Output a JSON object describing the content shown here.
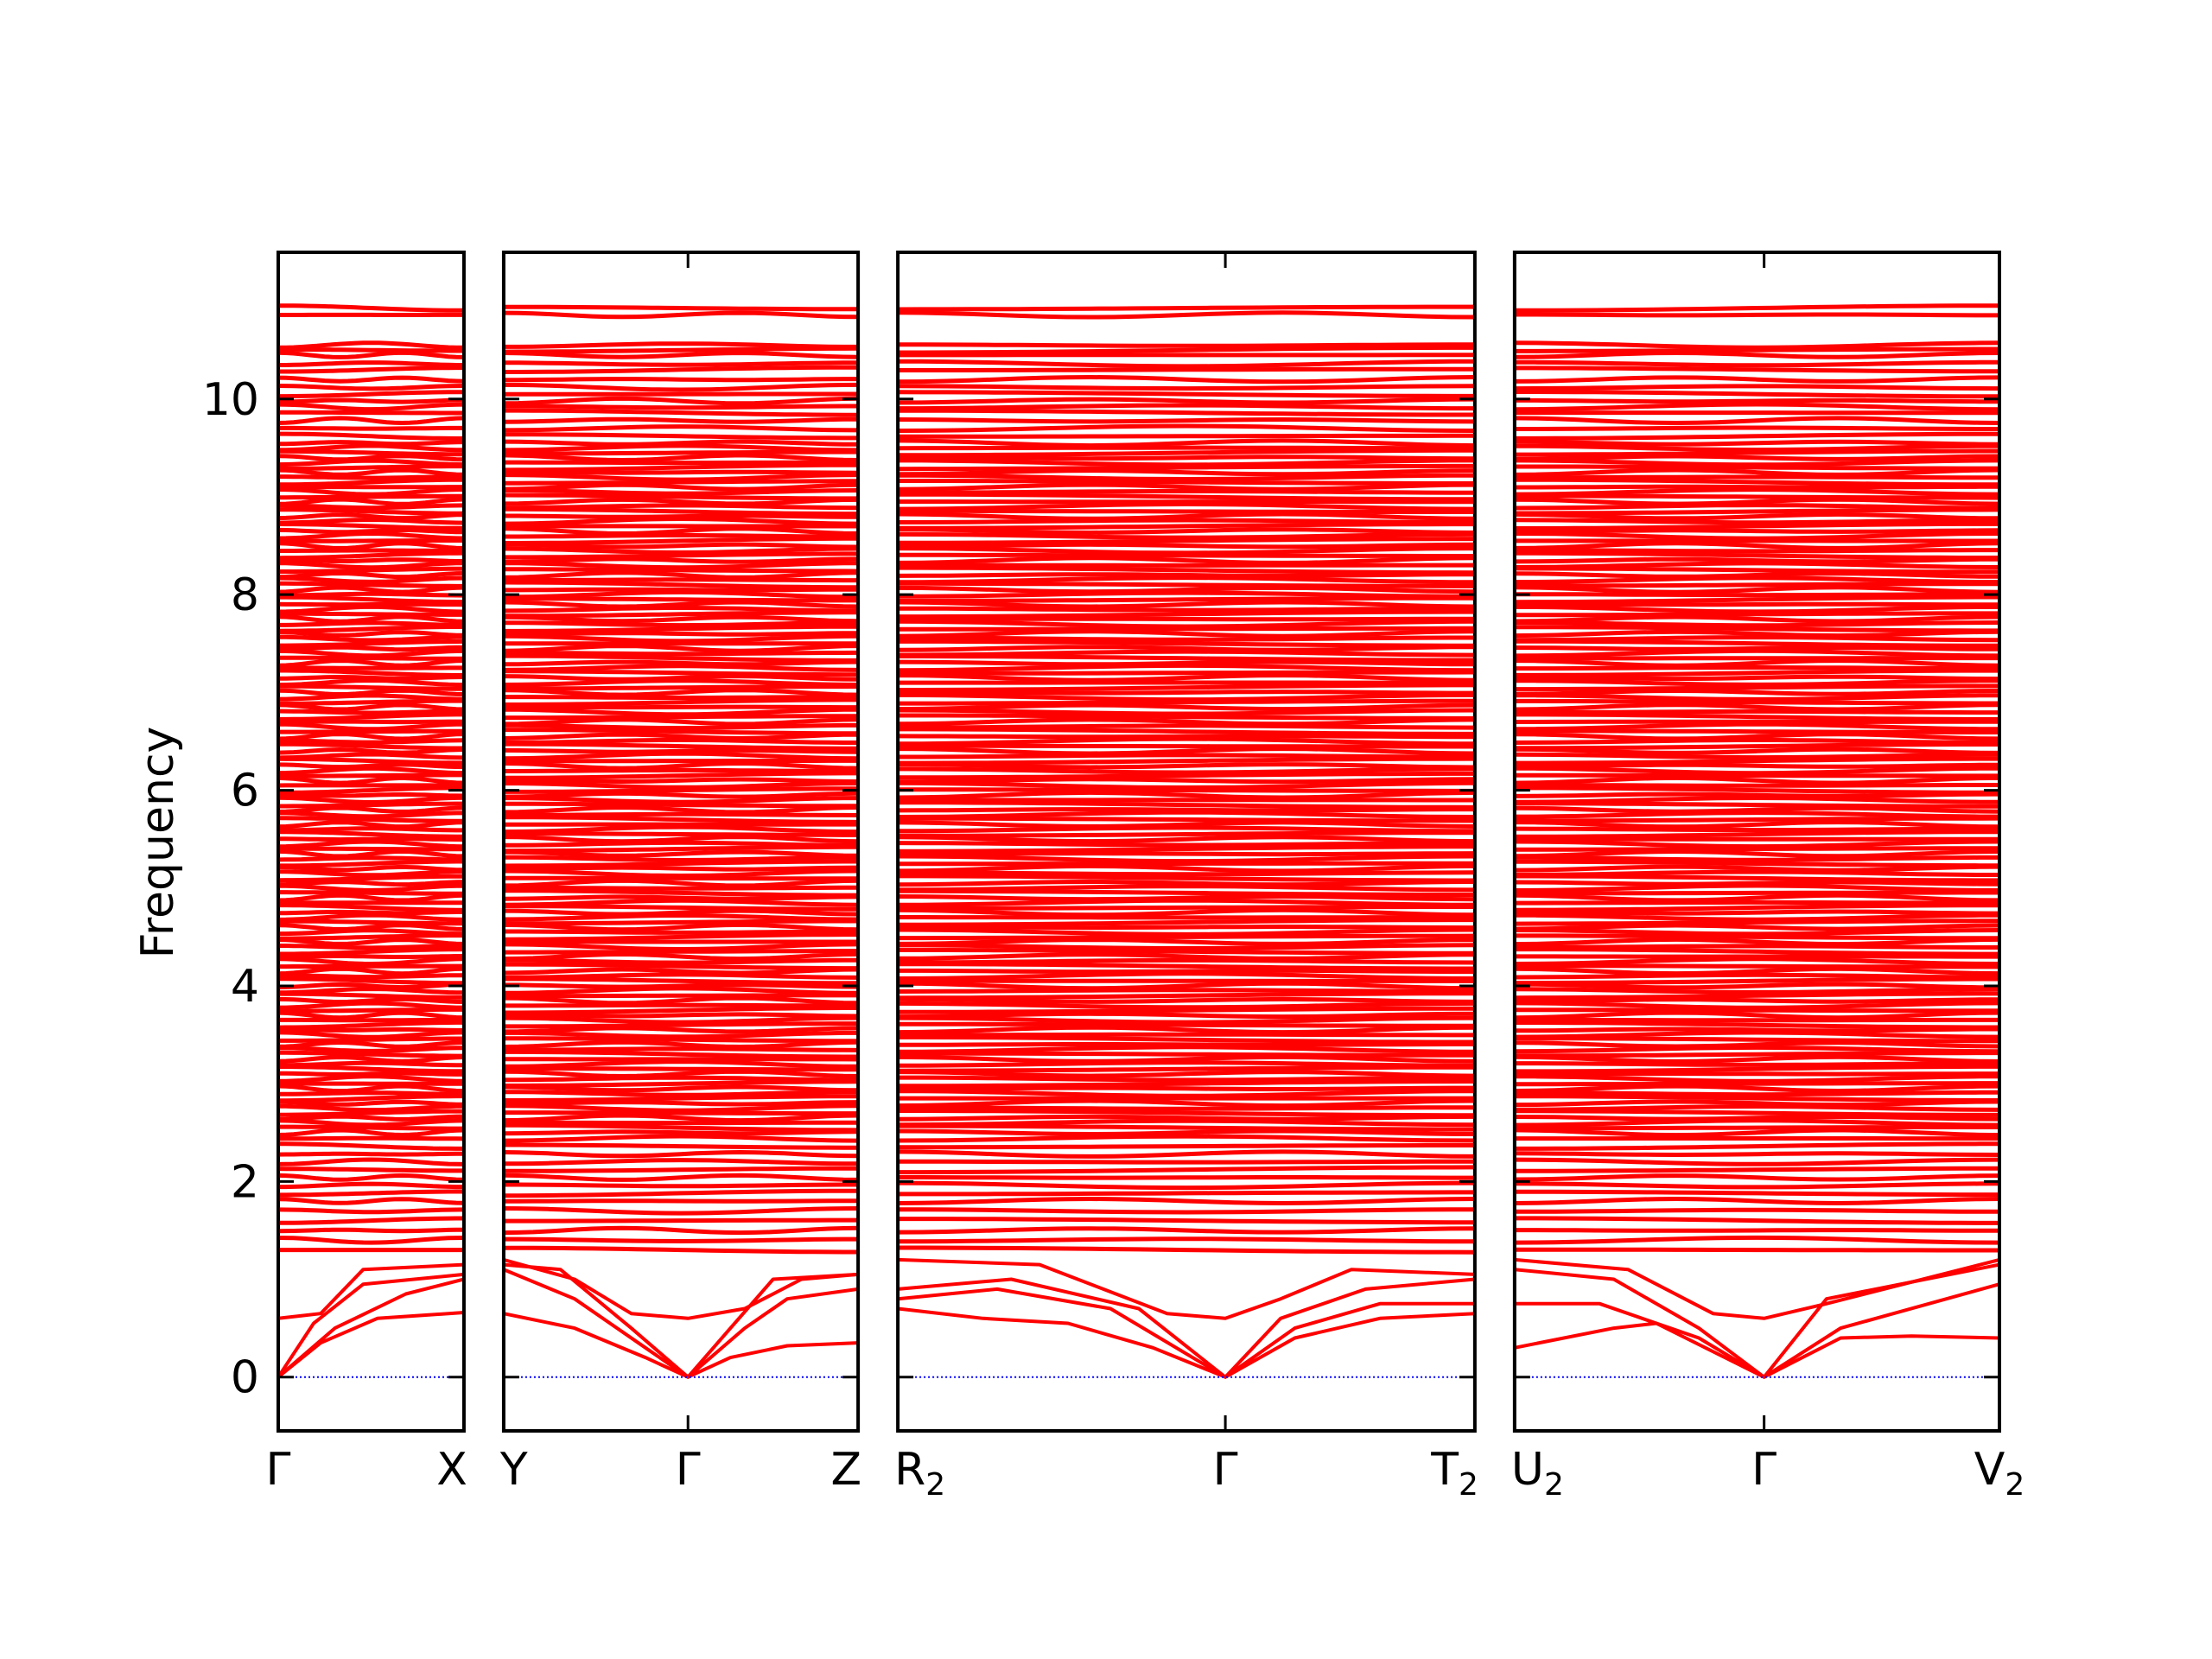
{
  "chart_data": {
    "type": "line",
    "title": "",
    "ylabel": "Frequency",
    "xlabel": "",
    "ylim": [
      -0.55,
      11.5
    ],
    "yticks": [
      0,
      2,
      4,
      6,
      8,
      10
    ],
    "ytick_labels": [
      "0",
      "2",
      "4",
      "6",
      "8",
      "10"
    ],
    "grid": false,
    "colors": {
      "bands": "#ff0000",
      "zero_line": "#0000ff",
      "axes": "#000000"
    },
    "panels": [
      {
        "k_ticks": [
          0,
          1.31
        ],
        "tick_labels": [
          {
            "base": "Γ",
            "sub": ""
          },
          {
            "base": "X",
            "sub": ""
          }
        ],
        "low_bands": [
          [
            [
              0,
              0
            ],
            [
              0.3,
              0.35
            ],
            [
              0.7,
              0.6
            ],
            [
              1.31,
              0.66
            ]
          ],
          [
            [
              0,
              0
            ],
            [
              0.4,
              0.5
            ],
            [
              0.9,
              0.85
            ],
            [
              1.31,
              1.0
            ]
          ],
          [
            [
              0,
              0
            ],
            [
              0.25,
              0.55
            ],
            [
              0.6,
              0.95
            ],
            [
              1.31,
              1.05
            ]
          ],
          [
            [
              0,
              0.6
            ],
            [
              0.3,
              0.65
            ],
            [
              0.6,
              1.1
            ],
            [
              1.31,
              1.15
            ]
          ]
        ]
      },
      {
        "k_ticks": [
          0,
          1.3,
          2.5
        ],
        "tick_labels": [
          {
            "base": "Y",
            "sub": ""
          },
          {
            "base": "Γ",
            "sub": ""
          },
          {
            "base": "Z",
            "sub": ""
          }
        ],
        "low_bands": [
          [
            [
              0,
              0.65
            ],
            [
              0.5,
              0.5
            ],
            [
              1.0,
              0.2
            ],
            [
              1.3,
              0
            ],
            [
              1.6,
              0.2
            ],
            [
              2.0,
              0.32
            ],
            [
              2.5,
              0.35
            ]
          ],
          [
            [
              0,
              1.1
            ],
            [
              0.5,
              0.8
            ],
            [
              1.0,
              0.3
            ],
            [
              1.3,
              0
            ],
            [
              1.7,
              0.5
            ],
            [
              2.0,
              0.8
            ],
            [
              2.5,
              0.9
            ]
          ],
          [
            [
              0,
              1.15
            ],
            [
              0.4,
              1.1
            ],
            [
              0.9,
              0.5
            ],
            [
              1.3,
              0
            ],
            [
              1.6,
              0.5
            ],
            [
              1.9,
              1.0
            ],
            [
              2.5,
              1.05
            ]
          ],
          [
            [
              0,
              1.2
            ],
            [
              0.5,
              1.0
            ],
            [
              0.9,
              0.65
            ],
            [
              1.3,
              0.6
            ],
            [
              1.7,
              0.7
            ],
            [
              2.1,
              1.0
            ],
            [
              2.5,
              1.05
            ]
          ]
        ]
      },
      {
        "k_ticks": [
          0,
          2.31,
          4.07
        ],
        "tick_labels": [
          {
            "base": "R",
            "sub": "2"
          },
          {
            "base": "Γ",
            "sub": ""
          },
          {
            "base": "T",
            "sub": "2"
          }
        ],
        "low_bands": [
          [
            [
              0,
              0.7
            ],
            [
              0.6,
              0.6
            ],
            [
              1.2,
              0.55
            ],
            [
              1.8,
              0.3
            ],
            [
              2.31,
              0
            ],
            [
              2.8,
              0.4
            ],
            [
              3.4,
              0.6
            ],
            [
              4.07,
              0.65
            ]
          ],
          [
            [
              0,
              0.8
            ],
            [
              0.7,
              0.9
            ],
            [
              1.5,
              0.7
            ],
            [
              2.31,
              0
            ],
            [
              2.8,
              0.5
            ],
            [
              3.4,
              0.75
            ],
            [
              4.07,
              0.75
            ]
          ],
          [
            [
              0,
              0.9
            ],
            [
              0.8,
              1.0
            ],
            [
              1.7,
              0.7
            ],
            [
              2.31,
              0
            ],
            [
              2.7,
              0.6
            ],
            [
              3.3,
              0.9
            ],
            [
              4.07,
              1.0
            ]
          ],
          [
            [
              0,
              1.2
            ],
            [
              1.0,
              1.15
            ],
            [
              1.9,
              0.65
            ],
            [
              2.31,
              0.6
            ],
            [
              2.7,
              0.8
            ],
            [
              3.2,
              1.1
            ],
            [
              4.07,
              1.05
            ]
          ]
        ]
      },
      {
        "k_ticks": [
          0,
          1.76,
          3.42
        ],
        "tick_labels": [
          {
            "base": "U",
            "sub": "2"
          },
          {
            "base": "Γ",
            "sub": ""
          },
          {
            "base": "V",
            "sub": "2"
          }
        ],
        "low_bands": [
          [
            [
              0,
              0.3
            ],
            [
              0.7,
              0.5
            ],
            [
              1.0,
              0.55
            ],
            [
              1.76,
              0
            ],
            [
              2.3,
              0.4
            ],
            [
              2.8,
              0.42
            ],
            [
              3.42,
              0.4
            ]
          ],
          [
            [
              0,
              0.75
            ],
            [
              0.6,
              0.75
            ],
            [
              1.3,
              0.4
            ],
            [
              1.76,
              0
            ],
            [
              2.3,
              0.5
            ],
            [
              3.42,
              0.95
            ]
          ],
          [
            [
              0,
              1.1
            ],
            [
              0.7,
              1.0
            ],
            [
              1.3,
              0.5
            ],
            [
              1.76,
              0
            ],
            [
              2.2,
              0.8
            ],
            [
              3.42,
              1.15
            ]
          ],
          [
            [
              0,
              1.2
            ],
            [
              0.8,
              1.1
            ],
            [
              1.4,
              0.65
            ],
            [
              1.76,
              0.6
            ],
            [
              2.2,
              0.75
            ],
            [
              3.42,
              1.2
            ]
          ]
        ]
      }
    ],
    "flat_bands": [
      1.3,
      1.4,
      1.5,
      1.6,
      1.7,
      1.8,
      1.88,
      1.96,
      2.04,
      2.12,
      2.2,
      2.28,
      2.36,
      2.44,
      2.5,
      2.55,
      2.6,
      2.65,
      2.7,
      2.75,
      2.8,
      2.85,
      2.9,
      2.95,
      3.0,
      3.05,
      3.1,
      3.15,
      3.2,
      3.25,
      3.3,
      3.35,
      3.4,
      3.45,
      3.5,
      3.55,
      3.6,
      3.65,
      3.7,
      3.75,
      3.8,
      3.85,
      3.9,
      3.95,
      4.0,
      4.05,
      4.1,
      4.15,
      4.2,
      4.25,
      4.3,
      4.35,
      4.4,
      4.45,
      4.5,
      4.55,
      4.6,
      4.65,
      4.7,
      4.75,
      4.8,
      4.85,
      4.9,
      4.95,
      5.0,
      5.05,
      5.1,
      5.15,
      5.2,
      5.25,
      5.3,
      5.35,
      5.4,
      5.45,
      5.5,
      5.55,
      5.6,
      5.65,
      5.7,
      5.75,
      5.8,
      5.85,
      5.9,
      5.95,
      6.0,
      6.05,
      6.1,
      6.15,
      6.2,
      6.25,
      6.3,
      6.35,
      6.4,
      6.45,
      6.5,
      6.55,
      6.6,
      6.65,
      6.7,
      6.75,
      6.8,
      6.85,
      6.9,
      6.95,
      7.0,
      7.05,
      7.1,
      7.15,
      7.2,
      7.25,
      7.3,
      7.35,
      7.4,
      7.45,
      7.5,
      7.55,
      7.6,
      7.65,
      7.7,
      7.75,
      7.8,
      7.85,
      7.9,
      7.95,
      8.0,
      8.05,
      8.1,
      8.15,
      8.2,
      8.25,
      8.3,
      8.35,
      8.4,
      8.45,
      8.5,
      8.55,
      8.6,
      8.65,
      8.7,
      8.75,
      8.8,
      8.85,
      8.9,
      8.95,
      9.0,
      9.05,
      9.1,
      9.15,
      9.2,
      9.25,
      9.3,
      9.35,
      9.4,
      9.45,
      9.5,
      9.55,
      9.62,
      9.7,
      9.78,
      9.86,
      9.92,
      9.98,
      10.05,
      10.12,
      10.2,
      10.3,
      10.36,
      10.45,
      10.5,
      10.55,
      10.86,
      10.93
    ]
  }
}
